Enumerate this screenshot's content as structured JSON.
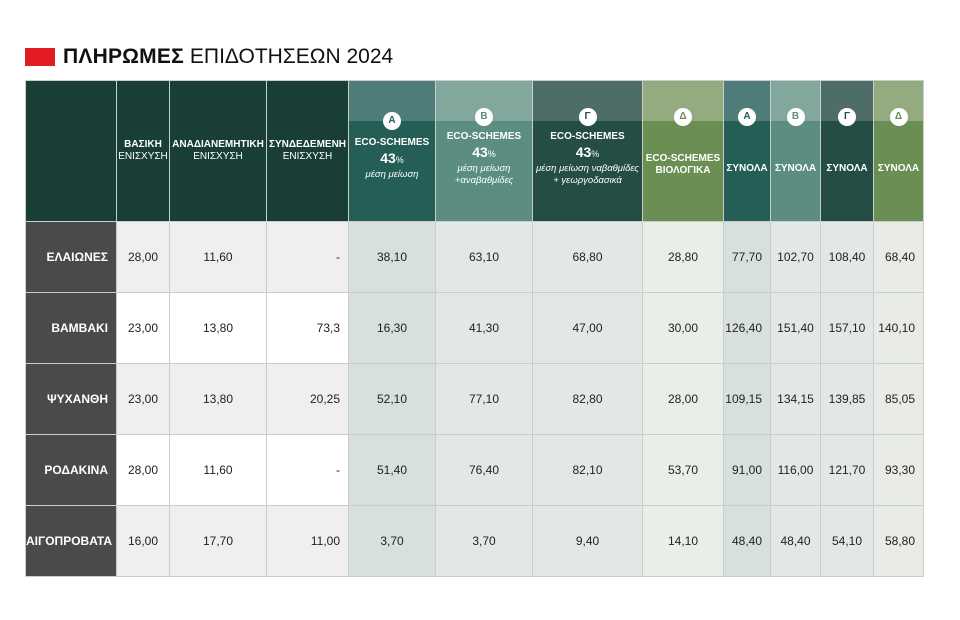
{
  "title": {
    "bold": "ΠΛΗΡΩΜΕΣ",
    "light": "ΕΠΙΔΟΤΗΣΕΩΝ 2024"
  },
  "colors": {
    "accent_red": "#e31b23",
    "dark_green": "#183e36",
    "row_head": "#4a4a4a"
  },
  "headers": {
    "c1": {
      "l1": "ΒΑΣΙΚΗ",
      "l2": "ΕΝΙΣΧΥΣΗ"
    },
    "c2": {
      "l1": "ΑΝΑΔΙΑΝΕΜΗΤΙΚΗ",
      "l2": "ΕΝΙΣΧΥΣΗ"
    },
    "c3": {
      "l1": "ΣΥΝΔΕΔΕΜΕΝΗ",
      "l2": "ΕΝΙΣΧΥΣΗ"
    },
    "c4": {
      "badge": "Α",
      "l1": "ECO-SCHEMES",
      "pct": "43",
      "pct_sign": "%",
      "desc": "μέση μείωση",
      "desc2": ""
    },
    "c5": {
      "badge": "Β",
      "l1": "ECO-SCHEMES",
      "pct": "43",
      "pct_sign": "%",
      "desc": "μέση μείωση",
      "desc2": "+αναβαθμίδες"
    },
    "c6": {
      "badge": "Γ",
      "l1": "ECO-SCHEMES",
      "pct": "43",
      "pct_sign": "%",
      "desc": "μέση μείωση ναβαθμίδες",
      "desc2": "+ γεωργοδασικά"
    },
    "c7": {
      "badge": "Δ",
      "l1": "ECO-SCHEMES",
      "l2": "ΒΙΟΛΟΓΙΚΑ"
    },
    "c8": {
      "badge": "Α",
      "l1": "ΣΥΝΟΛΑ"
    },
    "c9": {
      "badge": "Β",
      "l1": "ΣΥΝΟΛΑ"
    },
    "c10": {
      "badge": "Γ",
      "l1": "ΣΥΝΟΛΑ"
    },
    "c11": {
      "badge": "Δ",
      "l1": "ΣΥΝΟΛΑ"
    }
  },
  "rows": [
    {
      "label": "ΕΛΑΙΩΝΕΣ",
      "cells": [
        "28,00",
        "11,60",
        "-",
        "38,10",
        "63,10",
        "68,80",
        "28,80",
        "77,70",
        "102,70",
        "108,40",
        "68,40"
      ]
    },
    {
      "label": "ΒΑΜΒΑΚΙ",
      "cells": [
        "23,00",
        "13,80",
        "73,3",
        "16,30",
        "41,30",
        "47,00",
        "30,00",
        "126,40",
        "151,40",
        "157,10",
        "140,10"
      ]
    },
    {
      "label": "ΨΥΧΑΝΘΗ",
      "cells": [
        "23,00",
        "13,80",
        "20,25",
        "52,10",
        "77,10",
        "82,80",
        "28,00",
        "109,15",
        "134,15",
        "139,85",
        "85,05"
      ]
    },
    {
      "label": "ΡΟΔΑΚΙΝΑ",
      "cells": [
        "28,00",
        "11,60",
        "-",
        "51,40",
        "76,40",
        "82,10",
        "53,70",
        "91,00",
        "116,00",
        "121,70",
        "93,30"
      ]
    },
    {
      "label": "ΑΙΓΟΠΡΟΒΑΤΑ",
      "cells": [
        "16,00",
        "17,70",
        "11,00",
        "3,70",
        "3,70",
        "9,40",
        "14,10",
        "48,40",
        "48,40",
        "54,10",
        "58,80"
      ]
    }
  ]
}
